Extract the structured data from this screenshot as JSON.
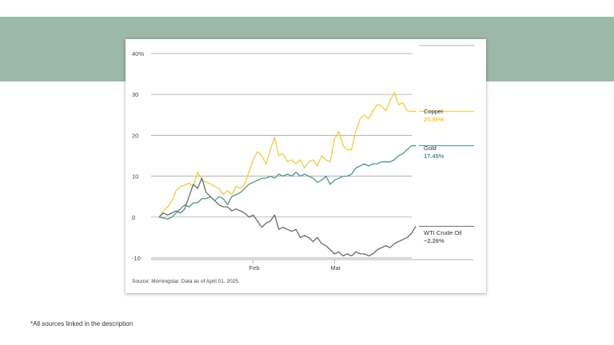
{
  "colors": {
    "band": "#9bb8a8",
    "copper": "#f2cc3a",
    "gold": "#4e9590",
    "oil": "#6b6b6b",
    "grid": "#9a9a9a"
  },
  "source": "Source: Morningstar. Data as of April 01, 2025.",
  "footnote": "*All sources linked in the description",
  "chart_data": {
    "type": "line",
    "y_ticks": [
      "40%",
      "30",
      "20",
      "10",
      "0",
      "-10"
    ],
    "y_tick_values": [
      40,
      30,
      20,
      10,
      0,
      -10
    ],
    "ylim": [
      -10,
      40
    ],
    "x_ticks": [
      {
        "label": "Feb",
        "x": 22
      },
      {
        "label": "Mar",
        "x": 41
      }
    ],
    "xlim": [
      0,
      60
    ],
    "grid": "horizontal",
    "series": [
      {
        "name": "Copper",
        "end_label": "25.86%",
        "color": "#f2cc3a",
        "x": [
          0,
          1,
          2,
          3,
          4,
          5,
          6,
          7,
          8,
          9,
          10,
          11,
          12,
          13,
          14,
          15,
          16,
          17,
          18,
          19,
          20,
          21,
          22,
          23,
          24,
          25,
          26,
          27,
          28,
          29,
          30,
          31,
          32,
          33,
          34,
          35,
          36,
          37,
          38,
          39,
          40,
          41,
          42,
          43,
          44,
          45,
          46,
          47,
          48,
          49,
          50,
          51,
          52,
          53,
          54,
          55,
          56,
          57,
          58,
          59,
          60
        ],
        "y": [
          0,
          1.5,
          2.5,
          4,
          6.5,
          7.5,
          7.8,
          8.3,
          7.5,
          11,
          9,
          8.5,
          8.2,
          7.5,
          7,
          5.5,
          6.5,
          5.5,
          7.5,
          7,
          8,
          11,
          14,
          16,
          15,
          13,
          16.5,
          19.5,
          15,
          15.5,
          13.5,
          14,
          13,
          14,
          12,
          13.5,
          14,
          12.5,
          15,
          14,
          13.5,
          19,
          21,
          17.5,
          16.5,
          16.5,
          21,
          24,
          25,
          24,
          26,
          27.5,
          27.2,
          26,
          28.5,
          30.5,
          27.5,
          28,
          26,
          25.86,
          25.86
        ]
      },
      {
        "name": "Gold",
        "end_label": "17.45%",
        "color": "#4e9590",
        "x": [
          0,
          1,
          2,
          3,
          4,
          5,
          6,
          7,
          8,
          9,
          10,
          11,
          12,
          13,
          14,
          15,
          16,
          17,
          18,
          19,
          20,
          21,
          22,
          23,
          24,
          25,
          26,
          27,
          28,
          29,
          30,
          31,
          32,
          33,
          34,
          35,
          36,
          37,
          38,
          39,
          40,
          41,
          42,
          43,
          44,
          45,
          46,
          47,
          48,
          49,
          50,
          51,
          52,
          53,
          54,
          55,
          56,
          57,
          58,
          59,
          60
        ],
        "y": [
          0,
          -0.2,
          -0.5,
          0,
          1,
          2,
          3,
          2.5,
          3.5,
          3.5,
          4.5,
          4.5,
          5,
          4,
          5,
          4.5,
          3,
          5,
          5.5,
          6,
          7,
          8,
          8.5,
          9,
          9.5,
          9.5,
          10,
          9.5,
          10.5,
          10,
          10.5,
          10,
          11,
          10,
          10.5,
          10,
          9.5,
          8.5,
          9,
          10,
          8,
          9,
          9.5,
          10,
          10,
          10.5,
          12,
          12.5,
          13,
          12.5,
          13,
          13,
          13.5,
          13.5,
          13.5,
          14,
          15,
          15.5,
          16.5,
          17.45,
          17.45
        ]
      },
      {
        "name": "WTI Crude Oil",
        "end_label": "−2.26%",
        "color": "#6b6b6b",
        "x": [
          0,
          1,
          2,
          3,
          4,
          5,
          6,
          7,
          8,
          9,
          10,
          11,
          12,
          13,
          14,
          15,
          16,
          17,
          18,
          19,
          20,
          21,
          22,
          23,
          24,
          25,
          26,
          27,
          28,
          29,
          30,
          31,
          32,
          33,
          34,
          35,
          36,
          37,
          38,
          39,
          40,
          41,
          42,
          43,
          44,
          45,
          46,
          47,
          48,
          49,
          50,
          51,
          52,
          53,
          54,
          55,
          56,
          57,
          58,
          59,
          60
        ],
        "y": [
          0,
          1,
          0.5,
          1,
          1.5,
          1,
          2,
          5,
          8,
          7,
          9.5,
          6,
          5,
          4,
          3,
          2.5,
          2.5,
          1.5,
          2,
          1.5,
          1,
          0,
          0.5,
          -1,
          -2.5,
          -1.5,
          -1,
          0.5,
          -3,
          -2.5,
          -3,
          -3.5,
          -3,
          -5,
          -4.5,
          -5,
          -6,
          -5,
          -6.5,
          -7,
          -8,
          -9,
          -8.5,
          -9.5,
          -9,
          -9.5,
          -8.5,
          -9,
          -9,
          -9.5,
          -9,
          -8,
          -7.5,
          -7,
          -7.5,
          -6.5,
          -6,
          -5.5,
          -5,
          -4,
          -2.26
        ]
      }
    ]
  }
}
